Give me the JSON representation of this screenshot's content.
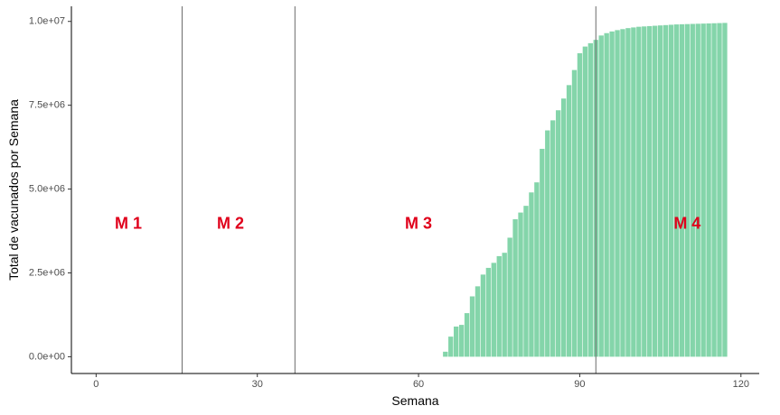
{
  "chart_data": {
    "type": "bar",
    "title": "",
    "xlabel": "Semana",
    "ylabel": "Total de vacunados por Semana",
    "xlim": [
      -4.6,
      123.4
    ],
    "ylim": [
      -500000,
      10450000
    ],
    "x_ticks": [
      0,
      30,
      60,
      90,
      120
    ],
    "x_tick_labels": [
      "0",
      "30",
      "60",
      "90",
      "120"
    ],
    "y_ticks": [
      0,
      2500000,
      5000000,
      7500000,
      10000000
    ],
    "y_tick_labels": [
      "0.0e+00",
      "2.5e+06",
      "5.0e+06",
      "7.5e+06",
      "1.0e+07"
    ],
    "grid": false,
    "bar_color": "#84d5aa",
    "annotation_color": "#e0001b",
    "vlines": [
      16,
      37,
      93
    ],
    "annotations": [
      {
        "x": 6,
        "y": 3950000,
        "text": "M 1"
      },
      {
        "x": 25,
        "y": 3950000,
        "text": "M 2"
      },
      {
        "x": 60,
        "y": 3950000,
        "text": "M 3"
      },
      {
        "x": 110,
        "y": 3950000,
        "text": "M 4"
      }
    ],
    "x": [
      65,
      66,
      67,
      68,
      69,
      70,
      71,
      72,
      73,
      74,
      75,
      76,
      77,
      78,
      79,
      80,
      81,
      82,
      83,
      84,
      85,
      86,
      87,
      88,
      89,
      90,
      91,
      92,
      93,
      94,
      95,
      96,
      97,
      98,
      99,
      100,
      101,
      102,
      103,
      104,
      105,
      106,
      107,
      108,
      109,
      110,
      111,
      112,
      113,
      114,
      115,
      116,
      117
    ],
    "values": [
      150000,
      600000,
      900000,
      950000,
      1300000,
      1800000,
      2100000,
      2450000,
      2650000,
      2800000,
      3000000,
      3100000,
      3550000,
      4100000,
      4300000,
      4500000,
      4900000,
      5200000,
      6200000,
      6750000,
      7050000,
      7350000,
      7700000,
      8100000,
      8550000,
      9050000,
      9250000,
      9350000,
      9450000,
      9580000,
      9650000,
      9700000,
      9740000,
      9770000,
      9800000,
      9820000,
      9840000,
      9850000,
      9860000,
      9870000,
      9880000,
      9890000,
      9900000,
      9910000,
      9915000,
      9920000,
      9925000,
      9930000,
      9935000,
      9940000,
      9945000,
      9950000,
      9955000
    ]
  }
}
